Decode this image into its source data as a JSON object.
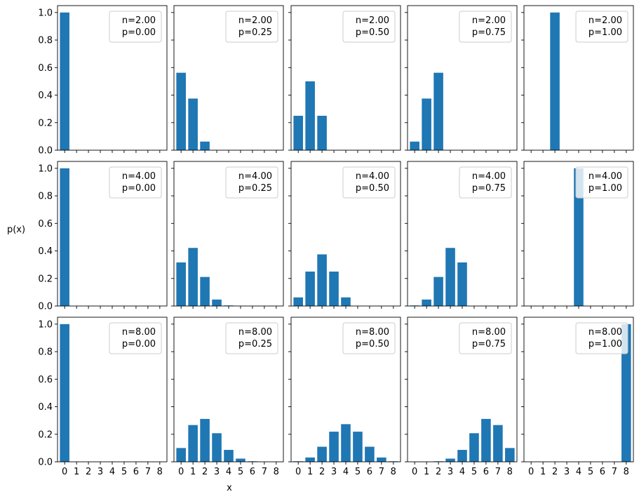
{
  "figure": {
    "xlabel": "x",
    "ylabel": "p(x)"
  },
  "chart_data": {
    "type": "bar",
    "layout": "grid 3 rows x 5 columns, shared x and y axes",
    "x_categories": [
      "0",
      "1",
      "2",
      "3",
      "4",
      "5",
      "6",
      "7",
      "8"
    ],
    "y_ticks": [
      "0.0",
      "0.2",
      "0.4",
      "0.6",
      "0.8",
      "1.0"
    ],
    "ylim": [
      0,
      1.05
    ],
    "xlim": [
      -0.6,
      8.6
    ],
    "bar_color": "#1f77b4",
    "legend_placement": "upper right",
    "grid": false,
    "panels": [
      {
        "n": "2.00",
        "p": "0.00",
        "x": [
          0,
          1,
          2
        ],
        "values": [
          1.0,
          0.0,
          0.0
        ]
      },
      {
        "n": "2.00",
        "p": "0.25",
        "x": [
          0,
          1,
          2
        ],
        "values": [
          0.5625,
          0.375,
          0.0625
        ]
      },
      {
        "n": "2.00",
        "p": "0.50",
        "x": [
          0,
          1,
          2
        ],
        "values": [
          0.25,
          0.5,
          0.25
        ]
      },
      {
        "n": "2.00",
        "p": "0.75",
        "x": [
          0,
          1,
          2
        ],
        "values": [
          0.0625,
          0.375,
          0.5625
        ]
      },
      {
        "n": "2.00",
        "p": "1.00",
        "x": [
          0,
          1,
          2
        ],
        "values": [
          0.0,
          0.0,
          1.0
        ]
      },
      {
        "n": "4.00",
        "p": "0.00",
        "x": [
          0,
          1,
          2,
          3,
          4
        ],
        "values": [
          1.0,
          0.0,
          0.0,
          0.0,
          0.0
        ]
      },
      {
        "n": "4.00",
        "p": "0.25",
        "x": [
          0,
          1,
          2,
          3,
          4
        ],
        "values": [
          0.3164,
          0.4219,
          0.2109,
          0.0469,
          0.0039
        ]
      },
      {
        "n": "4.00",
        "p": "0.50",
        "x": [
          0,
          1,
          2,
          3,
          4
        ],
        "values": [
          0.0625,
          0.25,
          0.375,
          0.25,
          0.0625
        ]
      },
      {
        "n": "4.00",
        "p": "0.75",
        "x": [
          0,
          1,
          2,
          3,
          4
        ],
        "values": [
          0.0039,
          0.0469,
          0.2109,
          0.4219,
          0.3164
        ]
      },
      {
        "n": "4.00",
        "p": "1.00",
        "x": [
          0,
          1,
          2,
          3,
          4
        ],
        "values": [
          0.0,
          0.0,
          0.0,
          0.0,
          1.0
        ]
      },
      {
        "n": "8.00",
        "p": "0.00",
        "x": [
          0,
          1,
          2,
          3,
          4,
          5,
          6,
          7,
          8
        ],
        "values": [
          1.0,
          0,
          0,
          0,
          0,
          0,
          0,
          0,
          0
        ]
      },
      {
        "n": "8.00",
        "p": "0.25",
        "x": [
          0,
          1,
          2,
          3,
          4,
          5,
          6,
          7,
          8
        ],
        "values": [
          0.1001,
          0.267,
          0.3115,
          0.2076,
          0.0865,
          0.0231,
          0.0038,
          0.0004,
          0.0
        ]
      },
      {
        "n": "8.00",
        "p": "0.50",
        "x": [
          0,
          1,
          2,
          3,
          4,
          5,
          6,
          7,
          8
        ],
        "values": [
          0.0039,
          0.0313,
          0.1094,
          0.2188,
          0.2734,
          0.2188,
          0.1094,
          0.0313,
          0.0039
        ]
      },
      {
        "n": "8.00",
        "p": "0.75",
        "x": [
          0,
          1,
          2,
          3,
          4,
          5,
          6,
          7,
          8
        ],
        "values": [
          0.0,
          0.0004,
          0.0038,
          0.0231,
          0.0865,
          0.2076,
          0.3115,
          0.267,
          0.1001
        ]
      },
      {
        "n": "8.00",
        "p": "1.00",
        "x": [
          0,
          1,
          2,
          3,
          4,
          5,
          6,
          7,
          8
        ],
        "values": [
          0,
          0,
          0,
          0,
          0,
          0,
          0,
          0,
          1.0
        ]
      }
    ]
  }
}
